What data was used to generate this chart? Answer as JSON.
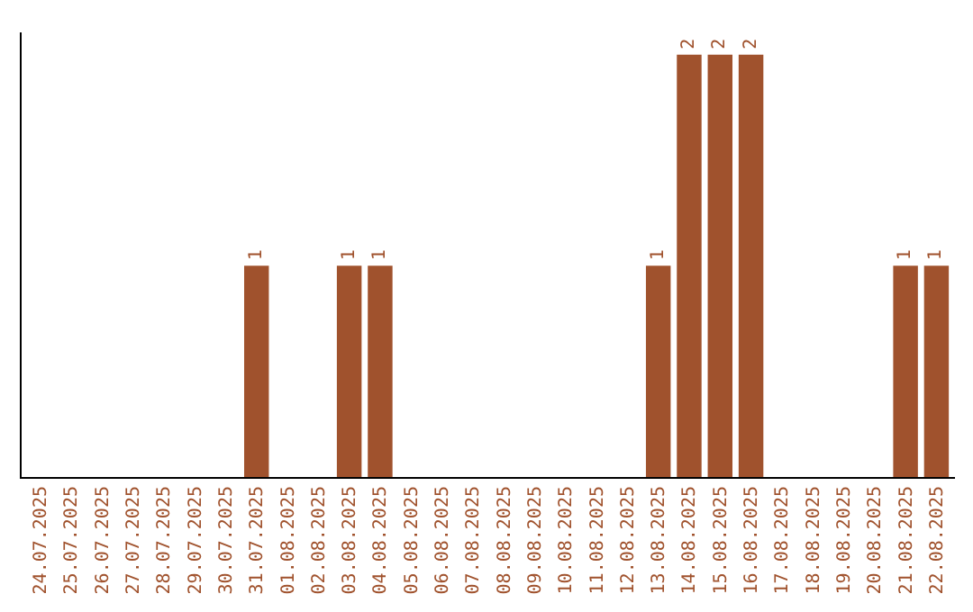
{
  "chart_data": {
    "type": "bar",
    "categories": [
      "24.07.2025",
      "25.07.2025",
      "26.07.2025",
      "27.07.2025",
      "28.07.2025",
      "29.07.2025",
      "30.07.2025",
      "31.07.2025",
      "01.08.2025",
      "02.08.2025",
      "03.08.2025",
      "04.08.2025",
      "05.08.2025",
      "06.08.2025",
      "07.08.2025",
      "08.08.2025",
      "09.08.2025",
      "10.08.2025",
      "11.08.2025",
      "12.08.2025",
      "13.08.2025",
      "14.08.2025",
      "15.08.2025",
      "16.08.2025",
      "17.08.2025",
      "18.08.2025",
      "19.08.2025",
      "20.08.2025",
      "21.08.2025",
      "22.08.2025"
    ],
    "values": [
      0,
      0,
      0,
      0,
      0,
      0,
      0,
      1,
      0,
      0,
      1,
      1,
      0,
      0,
      0,
      0,
      0,
      0,
      0,
      0,
      1,
      2,
      2,
      2,
      0,
      0,
      0,
      0,
      1,
      1
    ],
    "value_labels": [
      null,
      null,
      null,
      null,
      null,
      null,
      null,
      "1",
      null,
      null,
      "1",
      "1",
      null,
      null,
      null,
      null,
      null,
      null,
      null,
      null,
      "1",
      "2",
      "2",
      "2",
      null,
      null,
      null,
      null,
      "1",
      "1"
    ],
    "color": "#a0522d",
    "legend": false
  }
}
